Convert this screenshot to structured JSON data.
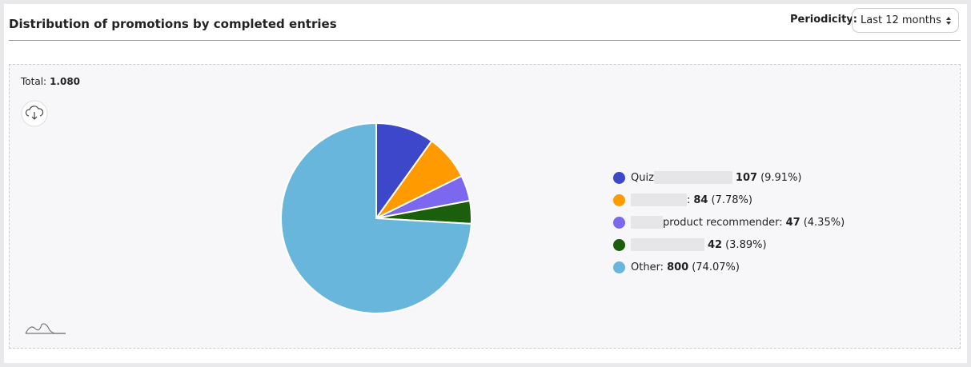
{
  "header": {
    "title": "Distribution of promotions by completed entries",
    "periodicity_label": "Periodicity:",
    "periodicity_value": "Last 12 months"
  },
  "total_label": "Total:",
  "total": "1.080",
  "chart_data": {
    "type": "pie",
    "categories": [
      "Quiz",
      ":",
      "product recommender:",
      null,
      "Other:"
    ],
    "values": [
      107,
      84,
      47,
      42,
      800
    ],
    "value_labels": [
      "(9.91%)",
      "(7.78%)",
      "(4.35%)",
      "(3.89%)",
      "(74.07%)"
    ],
    "colors": [
      "#3d47c9",
      "#ff9a00",
      "#7b68ee",
      "#1b5e0c",
      "#68b6db"
    ]
  }
}
